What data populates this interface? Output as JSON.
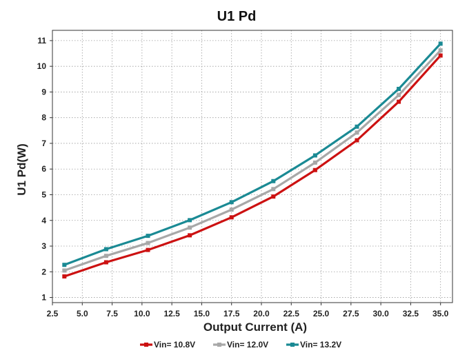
{
  "chart_data": {
    "type": "line",
    "title": "U1  Pd",
    "xlabel": "Output Current (A)",
    "ylabel": "U1 Pd(W)",
    "xlim": [
      2.5,
      36.0
    ],
    "ylim": [
      0.8,
      11.4
    ],
    "xticks": [
      "2.5",
      "5.0",
      "7.5",
      "10.0",
      "12.5",
      "15.0",
      "17.5",
      "20.0",
      "22.5",
      "25.0",
      "27.5",
      "30.0",
      "32.5",
      "35.0"
    ],
    "yticks": [
      "1",
      "2",
      "3",
      "4",
      "5",
      "6",
      "7",
      "8",
      "9",
      "10",
      "11"
    ],
    "grid": true,
    "legend_position": "bottom",
    "x": [
      3.5,
      7.0,
      10.5,
      14.0,
      17.5,
      21.0,
      24.5,
      28.0,
      31.5,
      35.0
    ],
    "series": [
      {
        "name": "Vin= 10.8V",
        "color": "#cc1111",
        "values": [
          1.82,
          2.37,
          2.85,
          3.42,
          4.12,
          4.93,
          5.96,
          7.12,
          8.62,
          10.42
        ]
      },
      {
        "name": "Vin= 12.0V",
        "color": "#a8a8a8",
        "values": [
          2.05,
          2.62,
          3.12,
          3.72,
          4.42,
          5.22,
          6.25,
          7.42,
          8.88,
          10.62
        ]
      },
      {
        "name": "Vin= 13.2V",
        "color": "#1a8a94",
        "values": [
          2.27,
          2.88,
          3.4,
          4.01,
          4.71,
          5.53,
          6.53,
          7.65,
          9.12,
          10.88
        ]
      }
    ]
  }
}
